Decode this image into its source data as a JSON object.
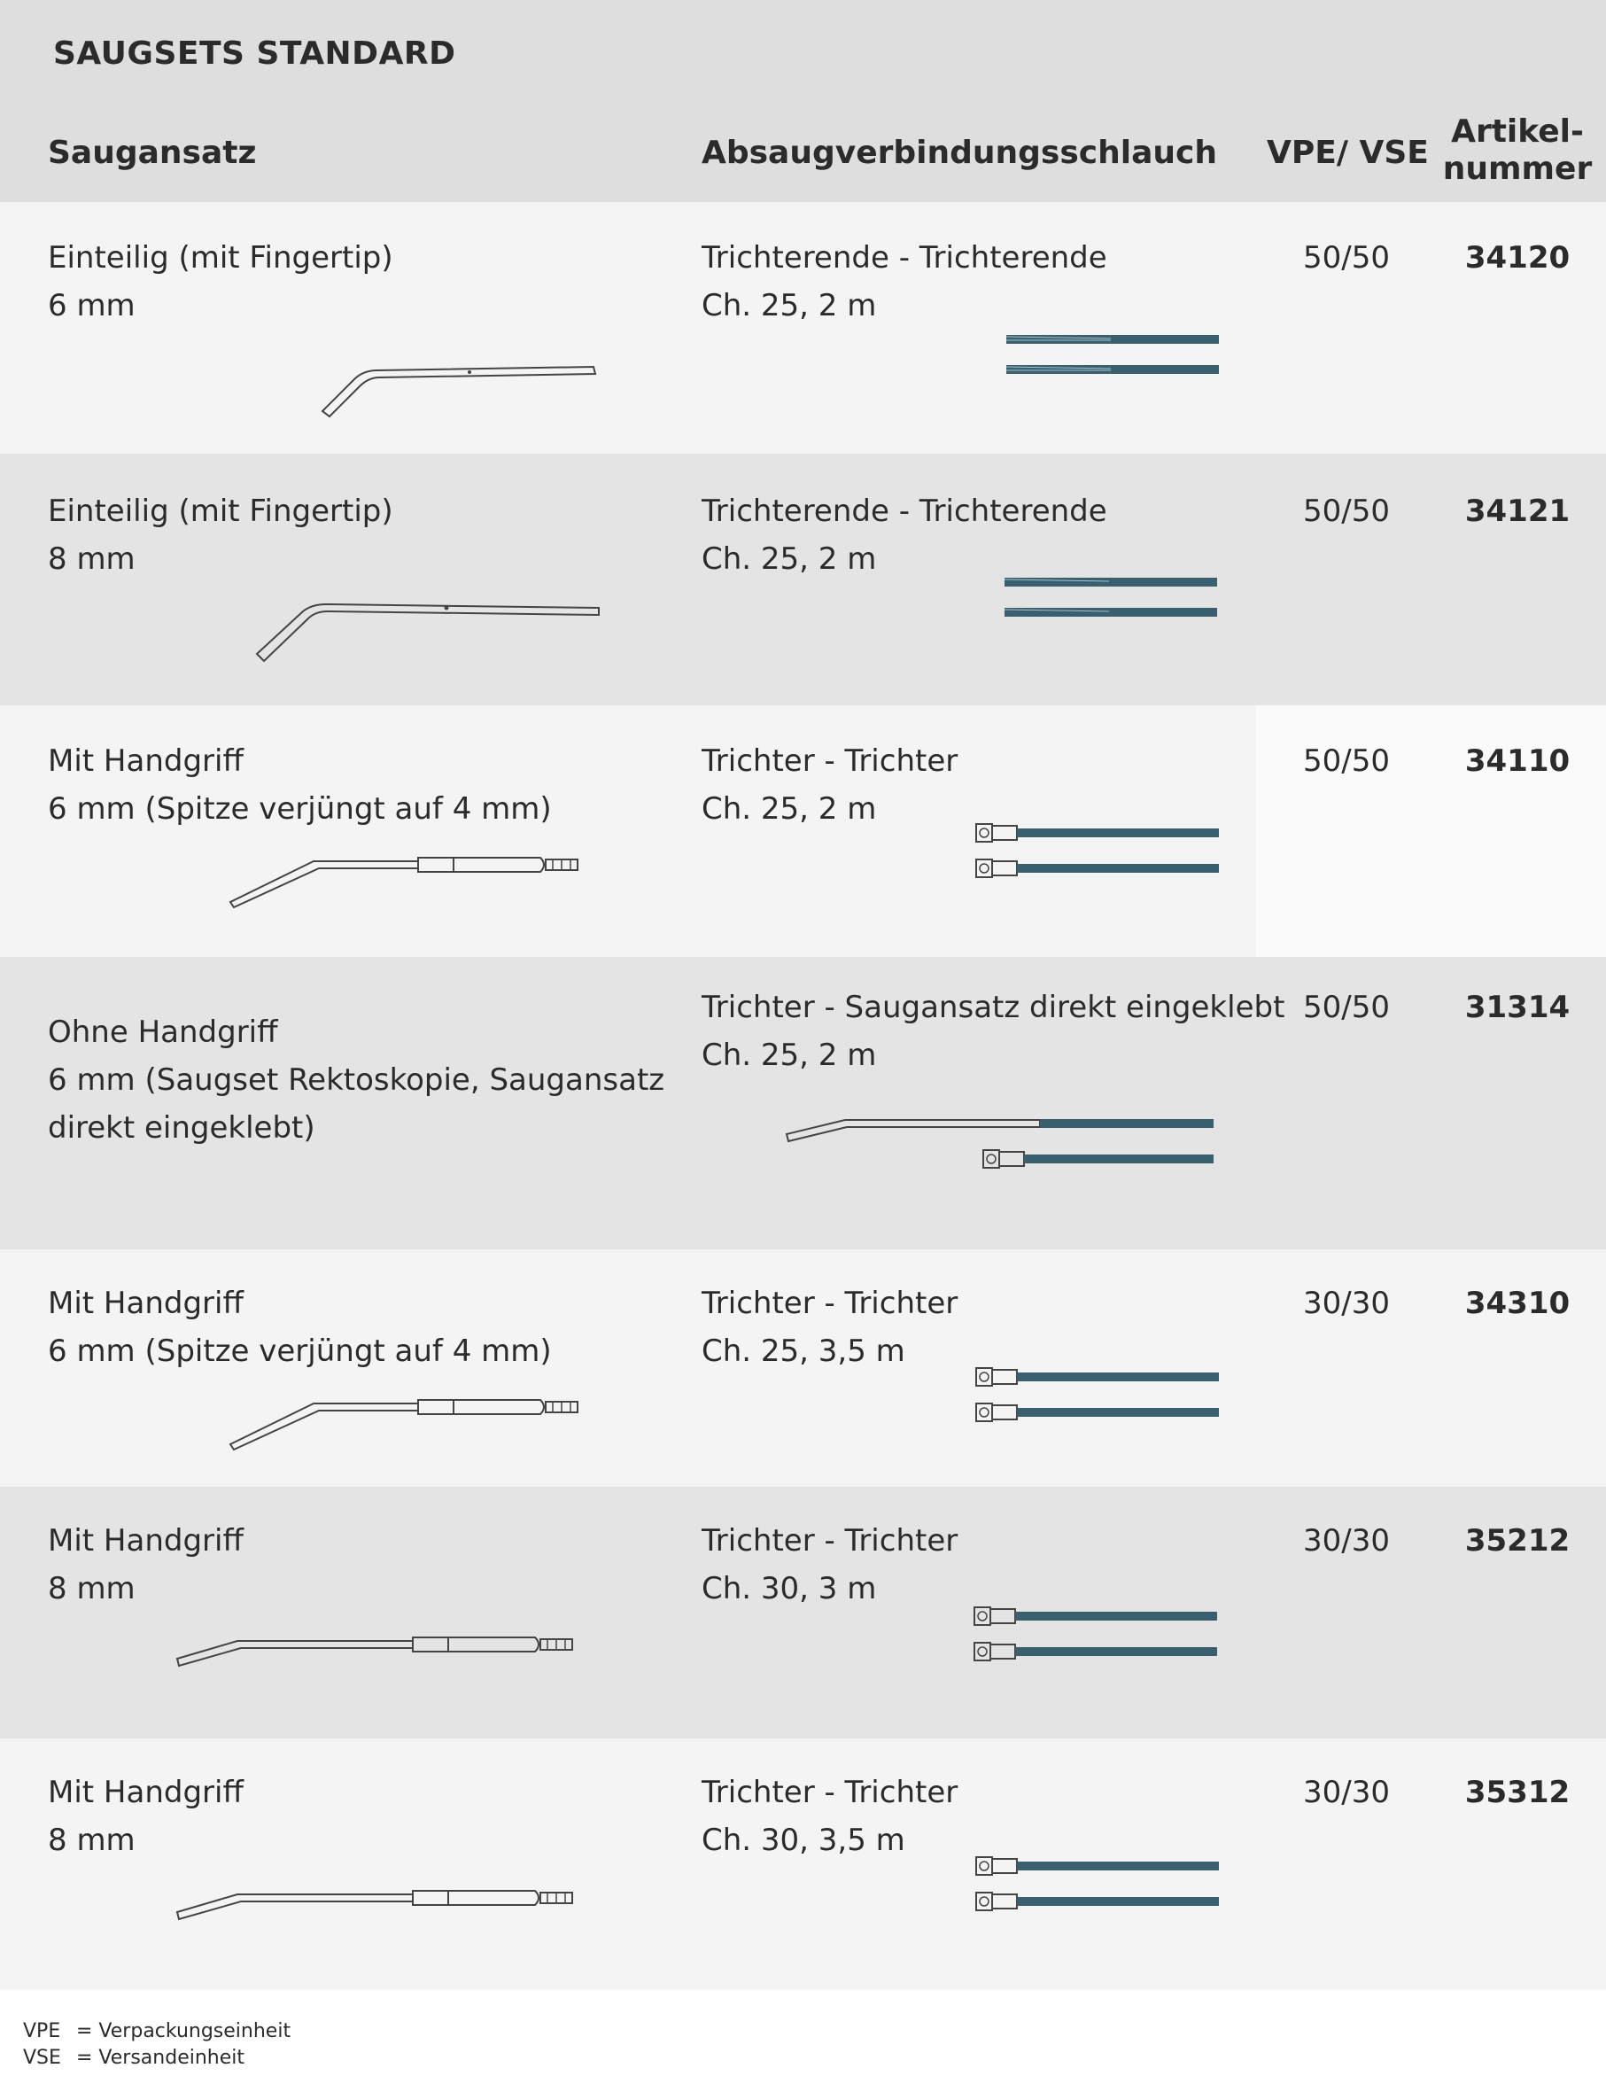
{
  "title": "SAUGSETS STANDARD",
  "columns": {
    "saugansatz": "Saugansatz",
    "schlauch": "Absaugverbindungsschlauch",
    "vpe": "VPE/ VSE",
    "artikel_line1": "Artikel-",
    "artikel_line2": "nummer"
  },
  "rows": [
    {
      "name_line1": "Einteilig (mit Fingertip)",
      "name_line2": "6 mm",
      "name_line3": "",
      "tube_line1": "Trichterende - Trichterende",
      "tube_line2": "Ch. 25, 2 m",
      "vpe": "50/50",
      "article": "34120"
    },
    {
      "name_line1": "Einteilig (mit Fingertip)",
      "name_line2": "8 mm",
      "name_line3": "",
      "tube_line1": "Trichterende - Trichterende",
      "tube_line2": "Ch. 25, 2 m",
      "vpe": "50/50",
      "article": "34121"
    },
    {
      "name_line1": "Mit Handgriff",
      "name_line2": "6 mm (Spitze verjüngt auf 4 mm)",
      "name_line3": "",
      "tube_line1": "Trichter - Trichter",
      "tube_line2": "Ch. 25, 2 m",
      "vpe": "50/50",
      "article": "34110"
    },
    {
      "name_line1": "Ohne Handgriff",
      "name_line2": "6 mm (Saugset Rektoskopie, Saugansatz",
      "name_line3": "direkt eingeklebt)",
      "tube_line1": "Trichter - Saugansatz direkt eingeklebt",
      "tube_line2": "Ch. 25, 2 m",
      "vpe": "50/50",
      "article": "31314"
    },
    {
      "name_line1": "Mit Handgriff",
      "name_line2": "6 mm (Spitze verjüngt auf 4 mm)",
      "name_line3": "",
      "tube_line1": "Trichter - Trichter",
      "tube_line2": "Ch. 25, 3,5 m",
      "vpe": "30/30",
      "article": "34310"
    },
    {
      "name_line1": "Mit Handgriff",
      "name_line2": "8 mm",
      "name_line3": "",
      "tube_line1": "Trichter - Trichter",
      "tube_line2": "Ch. 30, 3 m",
      "vpe": "30/30",
      "article": "35212"
    },
    {
      "name_line1": "Mit Handgriff",
      "name_line2": "8 mm",
      "name_line3": "",
      "tube_line1": "Trichter - Trichter",
      "tube_line2": "Ch. 30, 3,5 m",
      "vpe": "30/30",
      "article": "35312"
    }
  ],
  "legend": [
    {
      "abbr": "VPE",
      "text": "= Verpackungseinheit"
    },
    {
      "abbr": "VSE",
      "text": "= Versandeinheit"
    }
  ],
  "colors": {
    "tube": "#3a5f6e",
    "outline": "#444444"
  }
}
